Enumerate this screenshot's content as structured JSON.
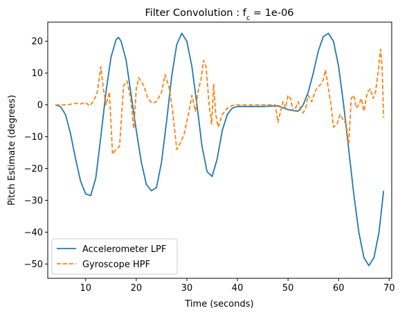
{
  "chart_data": {
    "type": "line",
    "title_main": "Filter Convolution : f",
    "title_sub": "c",
    "title_tail": " = 1e-06",
    "xlabel": "Time (seconds)",
    "ylabel": "Pitch Estimate (degrees)",
    "xlim": [
      2.5,
      70.5
    ],
    "ylim": [
      -54.5,
      26.0
    ],
    "xticks": [
      10,
      20,
      30,
      40,
      50,
      60,
      70
    ],
    "yticks": [
      20,
      10,
      0,
      -10,
      -20,
      -30,
      -40,
      -50
    ],
    "grid": false,
    "legend_position": "lower-left",
    "series": [
      {
        "name": "Accelerometer LPF",
        "color": "#1f77b4",
        "style": "solid",
        "points": [
          [
            4.0,
            0
          ],
          [
            5.0,
            -0.5
          ],
          [
            6.0,
            -3
          ],
          [
            7.0,
            -9
          ],
          [
            8.0,
            -17
          ],
          [
            9.0,
            -24
          ],
          [
            10.0,
            -28
          ],
          [
            11.0,
            -28.5
          ],
          [
            12.0,
            -23
          ],
          [
            13.0,
            -10
          ],
          [
            14.0,
            4
          ],
          [
            15.0,
            15
          ],
          [
            16.0,
            20.5
          ],
          [
            16.5,
            21.2
          ],
          [
            17.0,
            20
          ],
          [
            18.0,
            14
          ],
          [
            19.0,
            3
          ],
          [
            20.0,
            -8
          ],
          [
            21.0,
            -18
          ],
          [
            22.0,
            -25
          ],
          [
            23.0,
            -27
          ],
          [
            24.0,
            -26
          ],
          [
            25.0,
            -18
          ],
          [
            26.0,
            -5
          ],
          [
            27.0,
            9
          ],
          [
            28.0,
            19
          ],
          [
            29.0,
            22.5
          ],
          [
            30.0,
            20
          ],
          [
            31.0,
            12
          ],
          [
            32.0,
            0
          ],
          [
            33.0,
            -13
          ],
          [
            34.0,
            -21
          ],
          [
            35.0,
            -22.5
          ],
          [
            36.0,
            -17
          ],
          [
            37.0,
            -8
          ],
          [
            38.0,
            -3
          ],
          [
            39.0,
            -1
          ],
          [
            40.0,
            -0.5
          ],
          [
            45.0,
            -0.5
          ],
          [
            48.0,
            -0.3
          ],
          [
            50.0,
            -1.5
          ],
          [
            52.0,
            -2
          ],
          [
            53.0,
            0
          ],
          [
            54.0,
            4
          ],
          [
            55.0,
            10
          ],
          [
            56.0,
            17
          ],
          [
            57.0,
            21.5
          ],
          [
            58.0,
            22.5
          ],
          [
            59.0,
            20
          ],
          [
            60.0,
            12
          ],
          [
            61.0,
            0
          ],
          [
            62.0,
            -14
          ],
          [
            63.0,
            -28
          ],
          [
            64.0,
            -40
          ],
          [
            65.0,
            -48
          ],
          [
            66.0,
            -50.5
          ],
          [
            67.0,
            -48
          ],
          [
            68.0,
            -40
          ],
          [
            68.9,
            -27
          ]
        ]
      },
      {
        "name": "Gyroscope HPF",
        "color": "#ff7f0e",
        "style": "dashed",
        "points": [
          [
            4.0,
            0
          ],
          [
            5.0,
            0
          ],
          [
            6.0,
            0
          ],
          [
            7.0,
            0.2
          ],
          [
            8.0,
            0.5
          ],
          [
            9.0,
            0.3
          ],
          [
            10.0,
            0.8
          ],
          [
            10.7,
            -0.3
          ],
          [
            11.5,
            1
          ],
          [
            12.3,
            4
          ],
          [
            13.0,
            12
          ],
          [
            13.5,
            5
          ],
          [
            14.0,
            0
          ],
          [
            14.7,
            4
          ],
          [
            15.3,
            -15.5
          ],
          [
            16.0,
            -14
          ],
          [
            16.7,
            -13
          ],
          [
            17.5,
            6
          ],
          [
            18.2,
            7.5
          ],
          [
            18.9,
            2
          ],
          [
            19.5,
            -7.5
          ],
          [
            20.0,
            5
          ],
          [
            20.5,
            8.5
          ],
          [
            21.5,
            6
          ],
          [
            22.3,
            2
          ],
          [
            23.2,
            0.5
          ],
          [
            24.0,
            1
          ],
          [
            25.0,
            4
          ],
          [
            25.7,
            9.5
          ],
          [
            26.5,
            5.5
          ],
          [
            27.2,
            -2
          ],
          [
            28.0,
            -14
          ],
          [
            28.7,
            -12
          ],
          [
            29.5,
            -9
          ],
          [
            30.3,
            -3
          ],
          [
            31.0,
            3
          ],
          [
            31.7,
            -2
          ],
          [
            32.3,
            5
          ],
          [
            32.8,
            8
          ],
          [
            33.3,
            14
          ],
          [
            33.8,
            12
          ],
          [
            34.4,
            0
          ],
          [
            34.9,
            -6
          ],
          [
            35.3,
            6.5
          ],
          [
            35.7,
            -3
          ],
          [
            36.2,
            -7
          ],
          [
            37.0,
            -3
          ],
          [
            38.0,
            -1
          ],
          [
            39.0,
            -0.2
          ],
          [
            40.0,
            0
          ],
          [
            45.0,
            0
          ],
          [
            47.5,
            0
          ],
          [
            48.0,
            -5.5
          ],
          [
            49.0,
            1
          ],
          [
            49.5,
            -1
          ],
          [
            50.0,
            3
          ],
          [
            50.5,
            2
          ],
          [
            51.0,
            -2
          ],
          [
            51.5,
            -1
          ],
          [
            52.0,
            1
          ],
          [
            52.5,
            -1.5
          ],
          [
            53.0,
            -2.5
          ],
          [
            53.5,
            -1
          ],
          [
            54.0,
            3
          ],
          [
            54.7,
            1
          ],
          [
            55.3,
            4
          ],
          [
            55.8,
            5.5
          ],
          [
            56.5,
            6.5
          ],
          [
            57.0,
            8
          ],
          [
            57.4,
            11
          ],
          [
            57.8,
            7
          ],
          [
            58.5,
            0
          ],
          [
            59.0,
            -7
          ],
          [
            59.7,
            -6
          ],
          [
            60.3,
            -3
          ],
          [
            61.0,
            -5
          ],
          [
            61.5,
            -6
          ],
          [
            62.0,
            -12.5
          ],
          [
            62.5,
            2
          ],
          [
            63.0,
            3
          ],
          [
            63.5,
            -1
          ],
          [
            64.0,
            0
          ],
          [
            64.5,
            2
          ],
          [
            65.0,
            -2
          ],
          [
            65.7,
            4
          ],
          [
            66.3,
            5
          ],
          [
            66.8,
            2
          ],
          [
            67.3,
            4
          ],
          [
            67.8,
            10
          ],
          [
            68.3,
            17.5
          ],
          [
            68.6,
            12
          ],
          [
            68.9,
            -4
          ]
        ]
      }
    ]
  }
}
